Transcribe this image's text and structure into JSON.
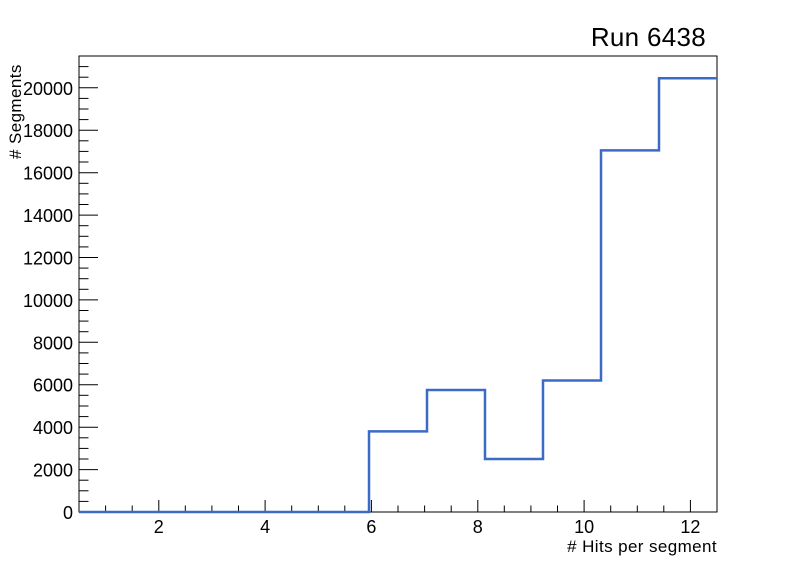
{
  "chart_data": {
    "type": "histogram-step",
    "title": "Run 6438",
    "xlabel": "# Hits per segment",
    "ylabel": "# Segments",
    "bin_edges": [
      0.5,
      1.5909,
      2.6818,
      3.7727,
      4.8636,
      5.9545,
      7.0455,
      8.1364,
      9.2273,
      10.3182,
      11.4091,
      12.5
    ],
    "counts": [
      0,
      0,
      0,
      0,
      0,
      3800,
      5750,
      2500,
      6200,
      17050,
      20450
    ],
    "xlim": [
      0.5,
      12.5
    ],
    "ylim": [
      0,
      21500
    ],
    "x_major_ticks": [
      2,
      4,
      6,
      8,
      10,
      12
    ],
    "x_major_labels": [
      "2",
      "4",
      "6",
      "8",
      "10",
      "12"
    ],
    "x_minor_step": 0.5,
    "y_major_ticks": [
      0,
      2000,
      4000,
      6000,
      8000,
      10000,
      12000,
      14000,
      16000,
      18000,
      20000
    ],
    "y_major_labels": [
      "0",
      "2000",
      "4000",
      "6000",
      "8000",
      "10000",
      "12000",
      "14000",
      "16000",
      "18000",
      "20000"
    ],
    "y_minor_step": 500,
    "line_color": "#3c6bc5",
    "axis_color": "#000000",
    "text_color": "#000000",
    "background_color": "#ffffff",
    "grid": false,
    "legend": null
  }
}
